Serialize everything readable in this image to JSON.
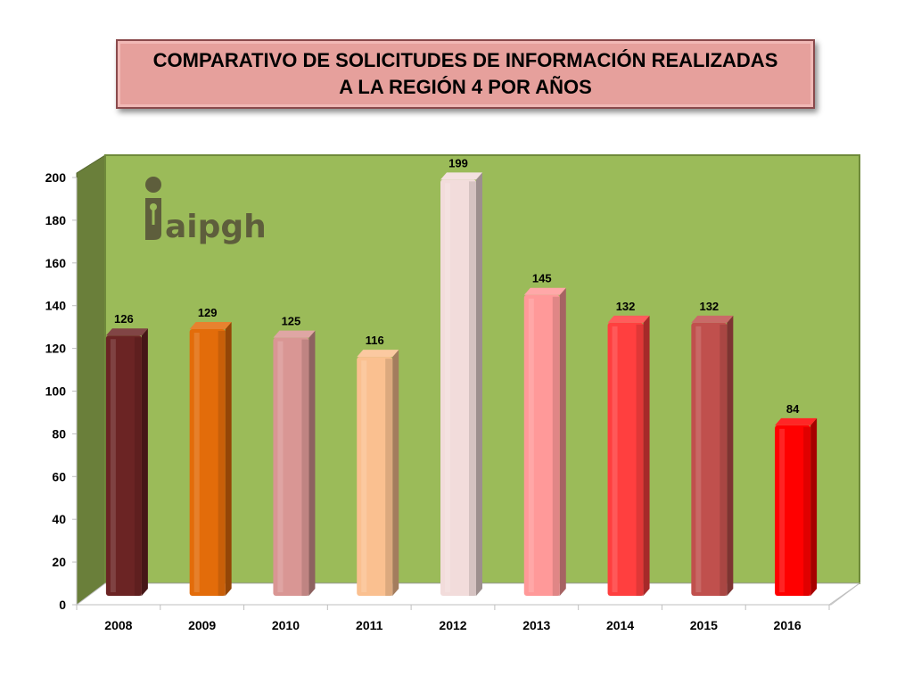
{
  "chart_data": {
    "type": "bar",
    "title_lines": [
      "COMPARATIVO DE SOLICITUDES  DE INFORMACIÓN REALIZADAS",
      "A LA REGIÓN 4 POR AÑOS"
    ],
    "categories": [
      "2008",
      "2009",
      "2010",
      "2011",
      "2012",
      "2013",
      "2014",
      "2015",
      "2016"
    ],
    "values": [
      126,
      129,
      125,
      116,
      199,
      145,
      132,
      132,
      84
    ],
    "bar_colors": [
      "#6b2424",
      "#e36c0a",
      "#d99694",
      "#fac090",
      "#f2dcdb",
      "#ff9999",
      "#ff3f3f",
      "#c0504d",
      "#ff0000"
    ],
    "ylim": [
      0,
      200
    ],
    "yticks": [
      0,
      20,
      40,
      60,
      80,
      100,
      120,
      140,
      160,
      180,
      200
    ],
    "xlabel": "",
    "ylabel": "",
    "grid": false,
    "legend": "none",
    "wall_color": "#9bbb59",
    "side_wall_color": "#6a7f3a"
  },
  "logo": {
    "text": "aipgh",
    "color": "#5e5e3c"
  }
}
